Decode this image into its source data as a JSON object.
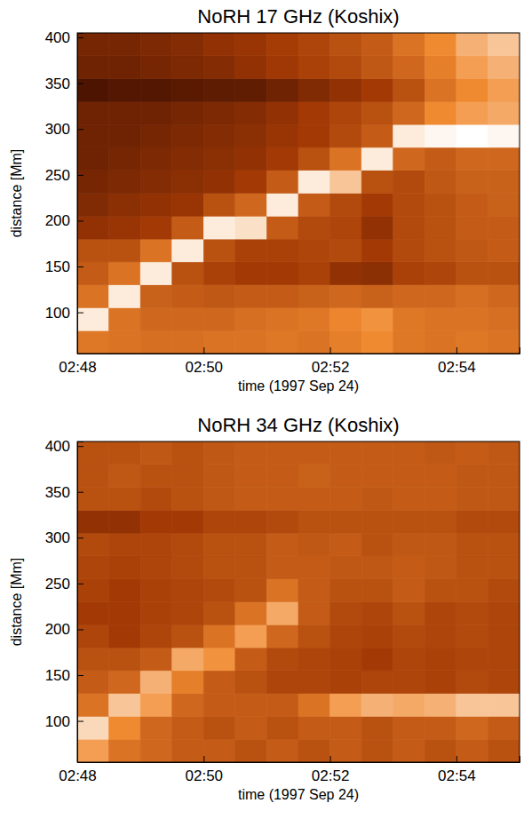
{
  "chart_data": [
    {
      "type": "heatmap",
      "title": "NoRH 17 GHz (Koshix)",
      "x_label": "time (1997 Sep 24)",
      "y_label": "distance [Mm]",
      "xlim": [
        48,
        55
      ],
      "ylim": [
        55,
        405
      ],
      "xticks": [
        {
          "value": 48,
          "label": "02:48"
        },
        {
          "value": 50,
          "label": "02:50"
        },
        {
          "value": 52,
          "label": "02:52"
        },
        {
          "value": 54,
          "label": "02:54"
        }
      ],
      "yticks": [
        100,
        150,
        200,
        250,
        300,
        350,
        400
      ],
      "x_edges": [
        48,
        48.5,
        49,
        49.5,
        50,
        50.5,
        51,
        51.5,
        52,
        52.5,
        53,
        53.5,
        54,
        54.5,
        55
      ],
      "y_edges": [
        55,
        80,
        105,
        130,
        155,
        180,
        205,
        230,
        255,
        280,
        305,
        330,
        355,
        380,
        405
      ],
      "zlim": [
        0,
        1
      ],
      "z": [
        [
          0.62,
          0.6,
          0.58,
          0.58,
          0.6,
          0.6,
          0.62,
          0.6,
          0.65,
          0.7,
          0.62,
          0.6,
          0.62,
          0.6
        ],
        [
          0.95,
          0.6,
          0.55,
          0.55,
          0.55,
          0.58,
          0.6,
          0.62,
          0.68,
          0.72,
          0.62,
          0.6,
          0.6,
          0.58
        ],
        [
          0.6,
          0.95,
          0.52,
          0.5,
          0.48,
          0.5,
          0.5,
          0.52,
          0.55,
          0.52,
          0.55,
          0.55,
          0.58,
          0.55
        ],
        [
          0.5,
          0.6,
          0.95,
          0.45,
          0.38,
          0.35,
          0.35,
          0.38,
          0.3,
          0.28,
          0.38,
          0.4,
          0.45,
          0.45
        ],
        [
          0.45,
          0.45,
          0.6,
          0.95,
          0.45,
          0.38,
          0.38,
          0.4,
          0.42,
          0.35,
          0.42,
          0.45,
          0.48,
          0.5
        ],
        [
          0.3,
          0.32,
          0.35,
          0.5,
          0.95,
          0.92,
          0.5,
          0.42,
          0.4,
          0.3,
          0.42,
          0.45,
          0.5,
          0.5
        ],
        [
          0.25,
          0.28,
          0.3,
          0.32,
          0.45,
          0.55,
          0.95,
          0.5,
          0.42,
          0.35,
          0.42,
          0.45,
          0.5,
          0.52
        ],
        [
          0.22,
          0.24,
          0.26,
          0.28,
          0.3,
          0.35,
          0.5,
          0.95,
          0.85,
          0.45,
          0.42,
          0.48,
          0.52,
          0.52
        ],
        [
          0.2,
          0.22,
          0.24,
          0.26,
          0.28,
          0.3,
          0.35,
          0.45,
          0.6,
          0.95,
          0.55,
          0.5,
          0.55,
          0.55
        ],
        [
          0.2,
          0.2,
          0.22,
          0.24,
          0.26,
          0.28,
          0.32,
          0.35,
          0.42,
          0.5,
          0.95,
          0.98,
          1.0,
          0.98
        ],
        [
          0.2,
          0.2,
          0.2,
          0.22,
          0.24,
          0.26,
          0.3,
          0.35,
          0.4,
          0.45,
          0.55,
          0.7,
          0.75,
          0.78
        ],
        [
          0.1,
          0.12,
          0.12,
          0.14,
          0.15,
          0.16,
          0.2,
          0.25,
          0.3,
          0.35,
          0.45,
          0.6,
          0.7,
          0.75
        ],
        [
          0.2,
          0.2,
          0.22,
          0.24,
          0.26,
          0.3,
          0.34,
          0.38,
          0.42,
          0.48,
          0.55,
          0.65,
          0.75,
          0.8
        ],
        [
          0.22,
          0.22,
          0.24,
          0.26,
          0.3,
          0.32,
          0.36,
          0.4,
          0.45,
          0.5,
          0.6,
          0.7,
          0.8,
          0.85
        ]
      ]
    },
    {
      "type": "heatmap",
      "title": "NoRH 34 GHz (Koshix)",
      "x_label": "time (1997 Sep 24)",
      "y_label": "distance [Mm]",
      "xlim": [
        48,
        55
      ],
      "ylim": [
        55,
        405
      ],
      "xticks": [
        {
          "value": 48,
          "label": "02:48"
        },
        {
          "value": 50,
          "label": "02:50"
        },
        {
          "value": 52,
          "label": "02:52"
        },
        {
          "value": 54,
          "label": "02:54"
        }
      ],
      "yticks": [
        100,
        150,
        200,
        250,
        300,
        350,
        400
      ],
      "x_edges": [
        48,
        48.5,
        49,
        49.5,
        50,
        50.5,
        51,
        51.5,
        52,
        52.5,
        53,
        53.5,
        54,
        54.5,
        55
      ],
      "y_edges": [
        55,
        80,
        105,
        130,
        155,
        180,
        205,
        230,
        255,
        280,
        305,
        330,
        355,
        380,
        405
      ],
      "zlim": [
        0,
        1
      ],
      "z": [
        [
          0.75,
          0.6,
          0.55,
          0.5,
          0.5,
          0.45,
          0.5,
          0.45,
          0.5,
          0.45,
          0.5,
          0.45,
          0.5,
          0.45
        ],
        [
          0.9,
          0.7,
          0.55,
          0.5,
          0.45,
          0.5,
          0.45,
          0.5,
          0.5,
          0.45,
          0.5,
          0.5,
          0.55,
          0.5
        ],
        [
          0.6,
          0.85,
          0.75,
          0.55,
          0.5,
          0.5,
          0.5,
          0.6,
          0.75,
          0.8,
          0.78,
          0.8,
          0.85,
          0.85
        ],
        [
          0.5,
          0.55,
          0.8,
          0.65,
          0.5,
          0.45,
          0.4,
          0.4,
          0.38,
          0.4,
          0.4,
          0.38,
          0.42,
          0.4
        ],
        [
          0.45,
          0.45,
          0.5,
          0.78,
          0.72,
          0.5,
          0.42,
          0.4,
          0.38,
          0.35,
          0.4,
          0.38,
          0.4,
          0.4
        ],
        [
          0.4,
          0.35,
          0.4,
          0.45,
          0.6,
          0.75,
          0.55,
          0.45,
          0.4,
          0.38,
          0.42,
          0.4,
          0.42,
          0.4
        ],
        [
          0.35,
          0.35,
          0.38,
          0.4,
          0.45,
          0.6,
          0.78,
          0.5,
          0.42,
          0.4,
          0.45,
          0.4,
          0.42,
          0.4
        ],
        [
          0.38,
          0.35,
          0.38,
          0.4,
          0.42,
          0.45,
          0.6,
          0.5,
          0.45,
          0.45,
          0.5,
          0.45,
          0.45,
          0.42
        ],
        [
          0.4,
          0.38,
          0.4,
          0.42,
          0.45,
          0.45,
          0.5,
          0.5,
          0.48,
          0.48,
          0.5,
          0.48,
          0.45,
          0.45
        ],
        [
          0.42,
          0.4,
          0.4,
          0.42,
          0.45,
          0.45,
          0.5,
          0.48,
          0.5,
          0.45,
          0.48,
          0.48,
          0.45,
          0.45
        ],
        [
          0.3,
          0.3,
          0.35,
          0.35,
          0.4,
          0.4,
          0.42,
          0.45,
          0.45,
          0.45,
          0.45,
          0.45,
          0.42,
          0.42
        ],
        [
          0.45,
          0.45,
          0.42,
          0.45,
          0.48,
          0.5,
          0.5,
          0.5,
          0.5,
          0.48,
          0.5,
          0.5,
          0.48,
          0.48
        ],
        [
          0.45,
          0.48,
          0.45,
          0.45,
          0.48,
          0.5,
          0.5,
          0.52,
          0.5,
          0.5,
          0.5,
          0.5,
          0.48,
          0.48
        ],
        [
          0.45,
          0.45,
          0.48,
          0.45,
          0.48,
          0.5,
          0.5,
          0.5,
          0.5,
          0.5,
          0.5,
          0.48,
          0.5,
          0.48
        ]
      ]
    }
  ]
}
